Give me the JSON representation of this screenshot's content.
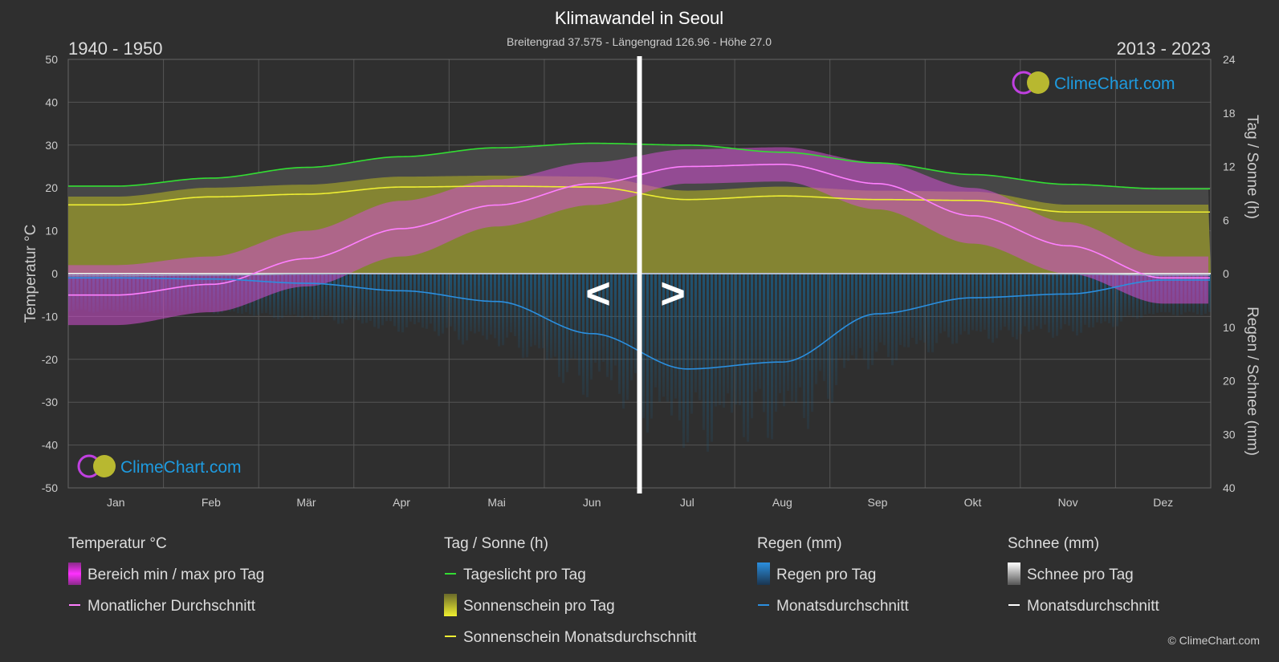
{
  "title": "Klimawandel in Seoul",
  "subtitle": "Breitengrad 37.575 - Längengrad 126.96 - Höhe 27.0",
  "period_left": "1940 - 1950",
  "period_right": "2013 - 2023",
  "arrow_left": "<",
  "arrow_right": ">",
  "brand": "ClimeChart.com",
  "copyright": "© ClimeChart.com",
  "colors": {
    "background": "#2f2f2f",
    "grid": "#555555",
    "temp_range": "#d14fd1",
    "temp_avg": "#ff7fff",
    "daylight": "#33dd33",
    "sunshine_fill": "#8f8f2f",
    "sunshine_avg": "#eeee33",
    "rain_fill": "#1a5a80",
    "rain_avg": "#2b8fdf",
    "snow_avg": "#ffffff",
    "divider": "#ffffff",
    "brand": "#1e9be0"
  },
  "chart_data": {
    "type": "line",
    "title": "Klimawandel in Seoul",
    "categories": [
      "Jan",
      "Feb",
      "Mär",
      "Apr",
      "Mai",
      "Jun",
      "Jul",
      "Aug",
      "Sep",
      "Okt",
      "Nov",
      "Dez"
    ],
    "y_left": {
      "label": "Temperatur °C",
      "min": -50,
      "max": 50,
      "ticks": [
        50,
        40,
        30,
        20,
        10,
        0,
        -10,
        -20,
        -30,
        -40,
        -50
      ]
    },
    "y_right_top": {
      "label": "Tag / Sonne (h)",
      "min": 0,
      "max": 24,
      "ticks": [
        24,
        18,
        12,
        6,
        0
      ]
    },
    "y_right_bottom": {
      "label": "Regen / Schnee (mm)",
      "min": 0,
      "max": 40,
      "ticks": [
        0,
        10,
        20,
        30,
        40
      ]
    },
    "divider_position_month": 6.0,
    "series": [
      {
        "name": "Monatlicher Durchschnitt",
        "axis": "temp",
        "values": [
          -5.0,
          -2.5,
          3.5,
          10.5,
          16.0,
          21.0,
          25.0,
          25.5,
          21.0,
          13.5,
          6.5,
          -1.0
        ]
      },
      {
        "name": "Bereich min / max pro Tag (min)",
        "axis": "temp",
        "values": [
          -12,
          -9,
          -3,
          4,
          11,
          16,
          21,
          21.5,
          15,
          7,
          0,
          -7
        ]
      },
      {
        "name": "Bereich min / max pro Tag (max)",
        "axis": "temp",
        "values": [
          2,
          4,
          10,
          17,
          22,
          26,
          29,
          29.5,
          26,
          20,
          12,
          4
        ]
      },
      {
        "name": "Tageslicht pro Tag",
        "axis": "sun",
        "values": [
          9.8,
          10.7,
          11.9,
          13.1,
          14.1,
          14.6,
          14.4,
          13.6,
          12.4,
          11.1,
          10.0,
          9.5
        ]
      },
      {
        "name": "Sonnenschein Monatsdurchschnitt",
        "axis": "sun",
        "values": [
          7.7,
          8.6,
          8.9,
          9.7,
          9.8,
          9.7,
          8.3,
          8.7,
          8.3,
          8.2,
          6.9,
          6.9
        ]
      },
      {
        "name": "Regen Monatsdurchschnitt",
        "axis": "rain",
        "values": [
          0.8,
          1.0,
          1.8,
          3.2,
          5.2,
          11.2,
          17.8,
          16.5,
          7.5,
          4.5,
          3.8,
          1.2
        ]
      },
      {
        "name": "Schnee Monatsdurchschnitt",
        "axis": "rain",
        "values": [
          0.4,
          0.3,
          0.1,
          0.0,
          0.0,
          0.0,
          0.0,
          0.0,
          0.0,
          0.0,
          0.1,
          0.3
        ]
      }
    ]
  },
  "legend": {
    "groups": [
      {
        "header": "Temperatur °C",
        "items": [
          {
            "label": "Bereich min / max pro Tag",
            "kind": "swatch",
            "color": "#d14fd1"
          },
          {
            "label": "Monatlicher Durchschnitt",
            "kind": "line",
            "color": "#ff7fff"
          }
        ]
      },
      {
        "header": "Tag / Sonne (h)",
        "items": [
          {
            "label": "Tageslicht pro Tag",
            "kind": "line",
            "color": "#33dd33"
          },
          {
            "label": "Sonnenschein pro Tag",
            "kind": "swatch",
            "color": "#c8c83a"
          },
          {
            "label": "Sonnenschein Monatsdurchschnitt",
            "kind": "line",
            "color": "#eeee33"
          }
        ]
      },
      {
        "header": "Regen (mm)",
        "items": [
          {
            "label": "Regen pro Tag",
            "kind": "swatch",
            "color": "#2b8fdf"
          },
          {
            "label": "Monatsdurchschnitt",
            "kind": "line",
            "color": "#2b8fdf"
          }
        ]
      },
      {
        "header": "Schnee (mm)",
        "items": [
          {
            "label": "Schnee pro Tag",
            "kind": "swatch",
            "color": "#cccccc"
          },
          {
            "label": "Monatsdurchschnitt",
            "kind": "line",
            "color": "#ffffff"
          }
        ]
      }
    ]
  }
}
